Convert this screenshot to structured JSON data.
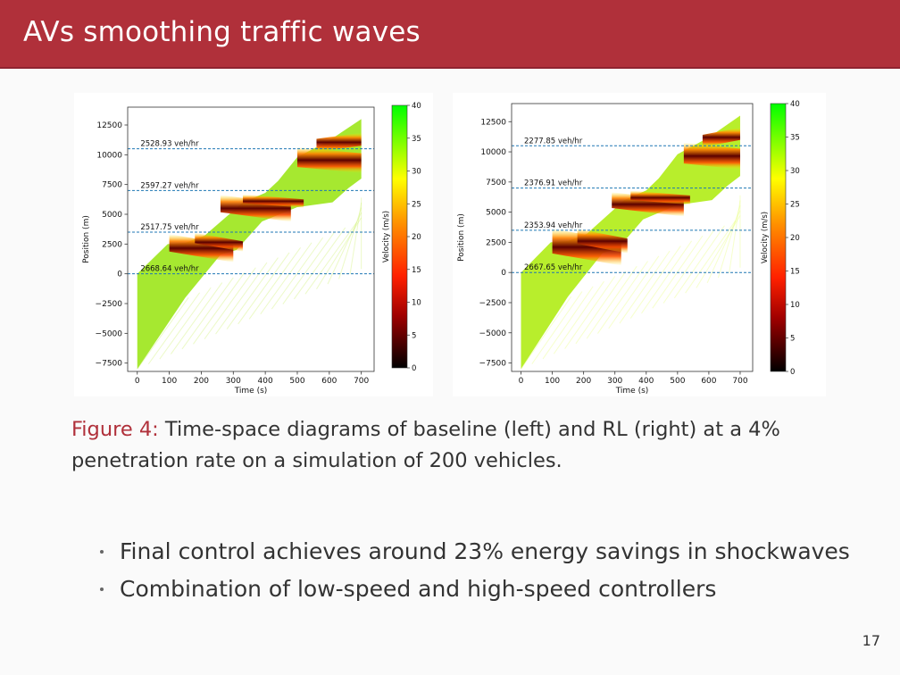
{
  "slide": {
    "title": "AVs smoothing traffic waves",
    "page_number": "17"
  },
  "caption": {
    "label": "Figure 4:",
    "text": " Time-space diagrams of baseline (left) and RL (right) at a 4% penetration rate on a simulation of 200 vehicles."
  },
  "bullets": [
    "Final control achieves around 23% energy savings in shockwaves",
    "Combination of low-speed and high-speed controllers"
  ],
  "colors": {
    "accent": "#b0303a",
    "colorbar_top": "#00ff00",
    "colorbar_mid": "#ff2000",
    "colorbar_bottom": "#000000",
    "flow_line": "#1f77b4"
  },
  "chart_data": [
    {
      "type": "heatmap",
      "side": "left",
      "xlabel": "Time (s)",
      "ylabel": "Position (m)",
      "colorbar_label": "Velocity (m/s)",
      "xlim": [
        -30,
        740
      ],
      "ylim": [
        -8200,
        14000
      ],
      "x_ticks": [
        "0",
        "100",
        "200",
        "300",
        "400",
        "500",
        "600",
        "700"
      ],
      "x_tick_values": [
        0,
        100,
        200,
        300,
        400,
        500,
        600,
        700
      ],
      "y_ticks": [
        "12500",
        "10000",
        "7500",
        "5000",
        "2500",
        "0",
        "−2500",
        "−5000",
        "−7500"
      ],
      "y_tick_values": [
        12500,
        10000,
        7500,
        5000,
        2500,
        0,
        -2500,
        -5000,
        -7500
      ],
      "cbar_ticks": [
        "40",
        "35",
        "30",
        "25",
        "20",
        "15",
        "10",
        "5",
        "0"
      ],
      "cbar_tick_values": [
        40,
        35,
        30,
        25,
        20,
        15,
        10,
        5,
        0
      ],
      "flow_lines": [
        {
          "y": 10500,
          "label": "2528.93 veh/hr"
        },
        {
          "y": 7000,
          "label": "2597.27 veh/hr"
        },
        {
          "y": 3500,
          "label": "2517.75 veh/hr"
        },
        {
          "y": 0,
          "label": "2668.64 veh/hr"
        }
      ]
    },
    {
      "type": "heatmap",
      "side": "right",
      "xlabel": "Time (s)",
      "ylabel": "Position (m)",
      "colorbar_label": "Velocity (m/s)",
      "xlim": [
        -30,
        740
      ],
      "ylim": [
        -8200,
        14000
      ],
      "x_ticks": [
        "0",
        "100",
        "200",
        "300",
        "400",
        "500",
        "600",
        "700"
      ],
      "x_tick_values": [
        0,
        100,
        200,
        300,
        400,
        500,
        600,
        700
      ],
      "y_ticks": [
        "12500",
        "10000",
        "7500",
        "5000",
        "2500",
        "0",
        "−2500",
        "−5000",
        "−7500"
      ],
      "y_tick_values": [
        12500,
        10000,
        7500,
        5000,
        2500,
        0,
        -2500,
        -5000,
        -7500
      ],
      "cbar_ticks": [
        "40",
        "35",
        "30",
        "25",
        "20",
        "15",
        "10",
        "5",
        "0"
      ],
      "cbar_tick_values": [
        40,
        35,
        30,
        25,
        20,
        15,
        10,
        5,
        0
      ],
      "flow_lines": [
        {
          "y": 10500,
          "label": "2277.85 veh/hr"
        },
        {
          "y": 7000,
          "label": "2376.91 veh/hr"
        },
        {
          "y": 3500,
          "label": "2353.94 veh/hr"
        },
        {
          "y": 0,
          "label": "2667.65 veh/hr"
        }
      ]
    }
  ]
}
